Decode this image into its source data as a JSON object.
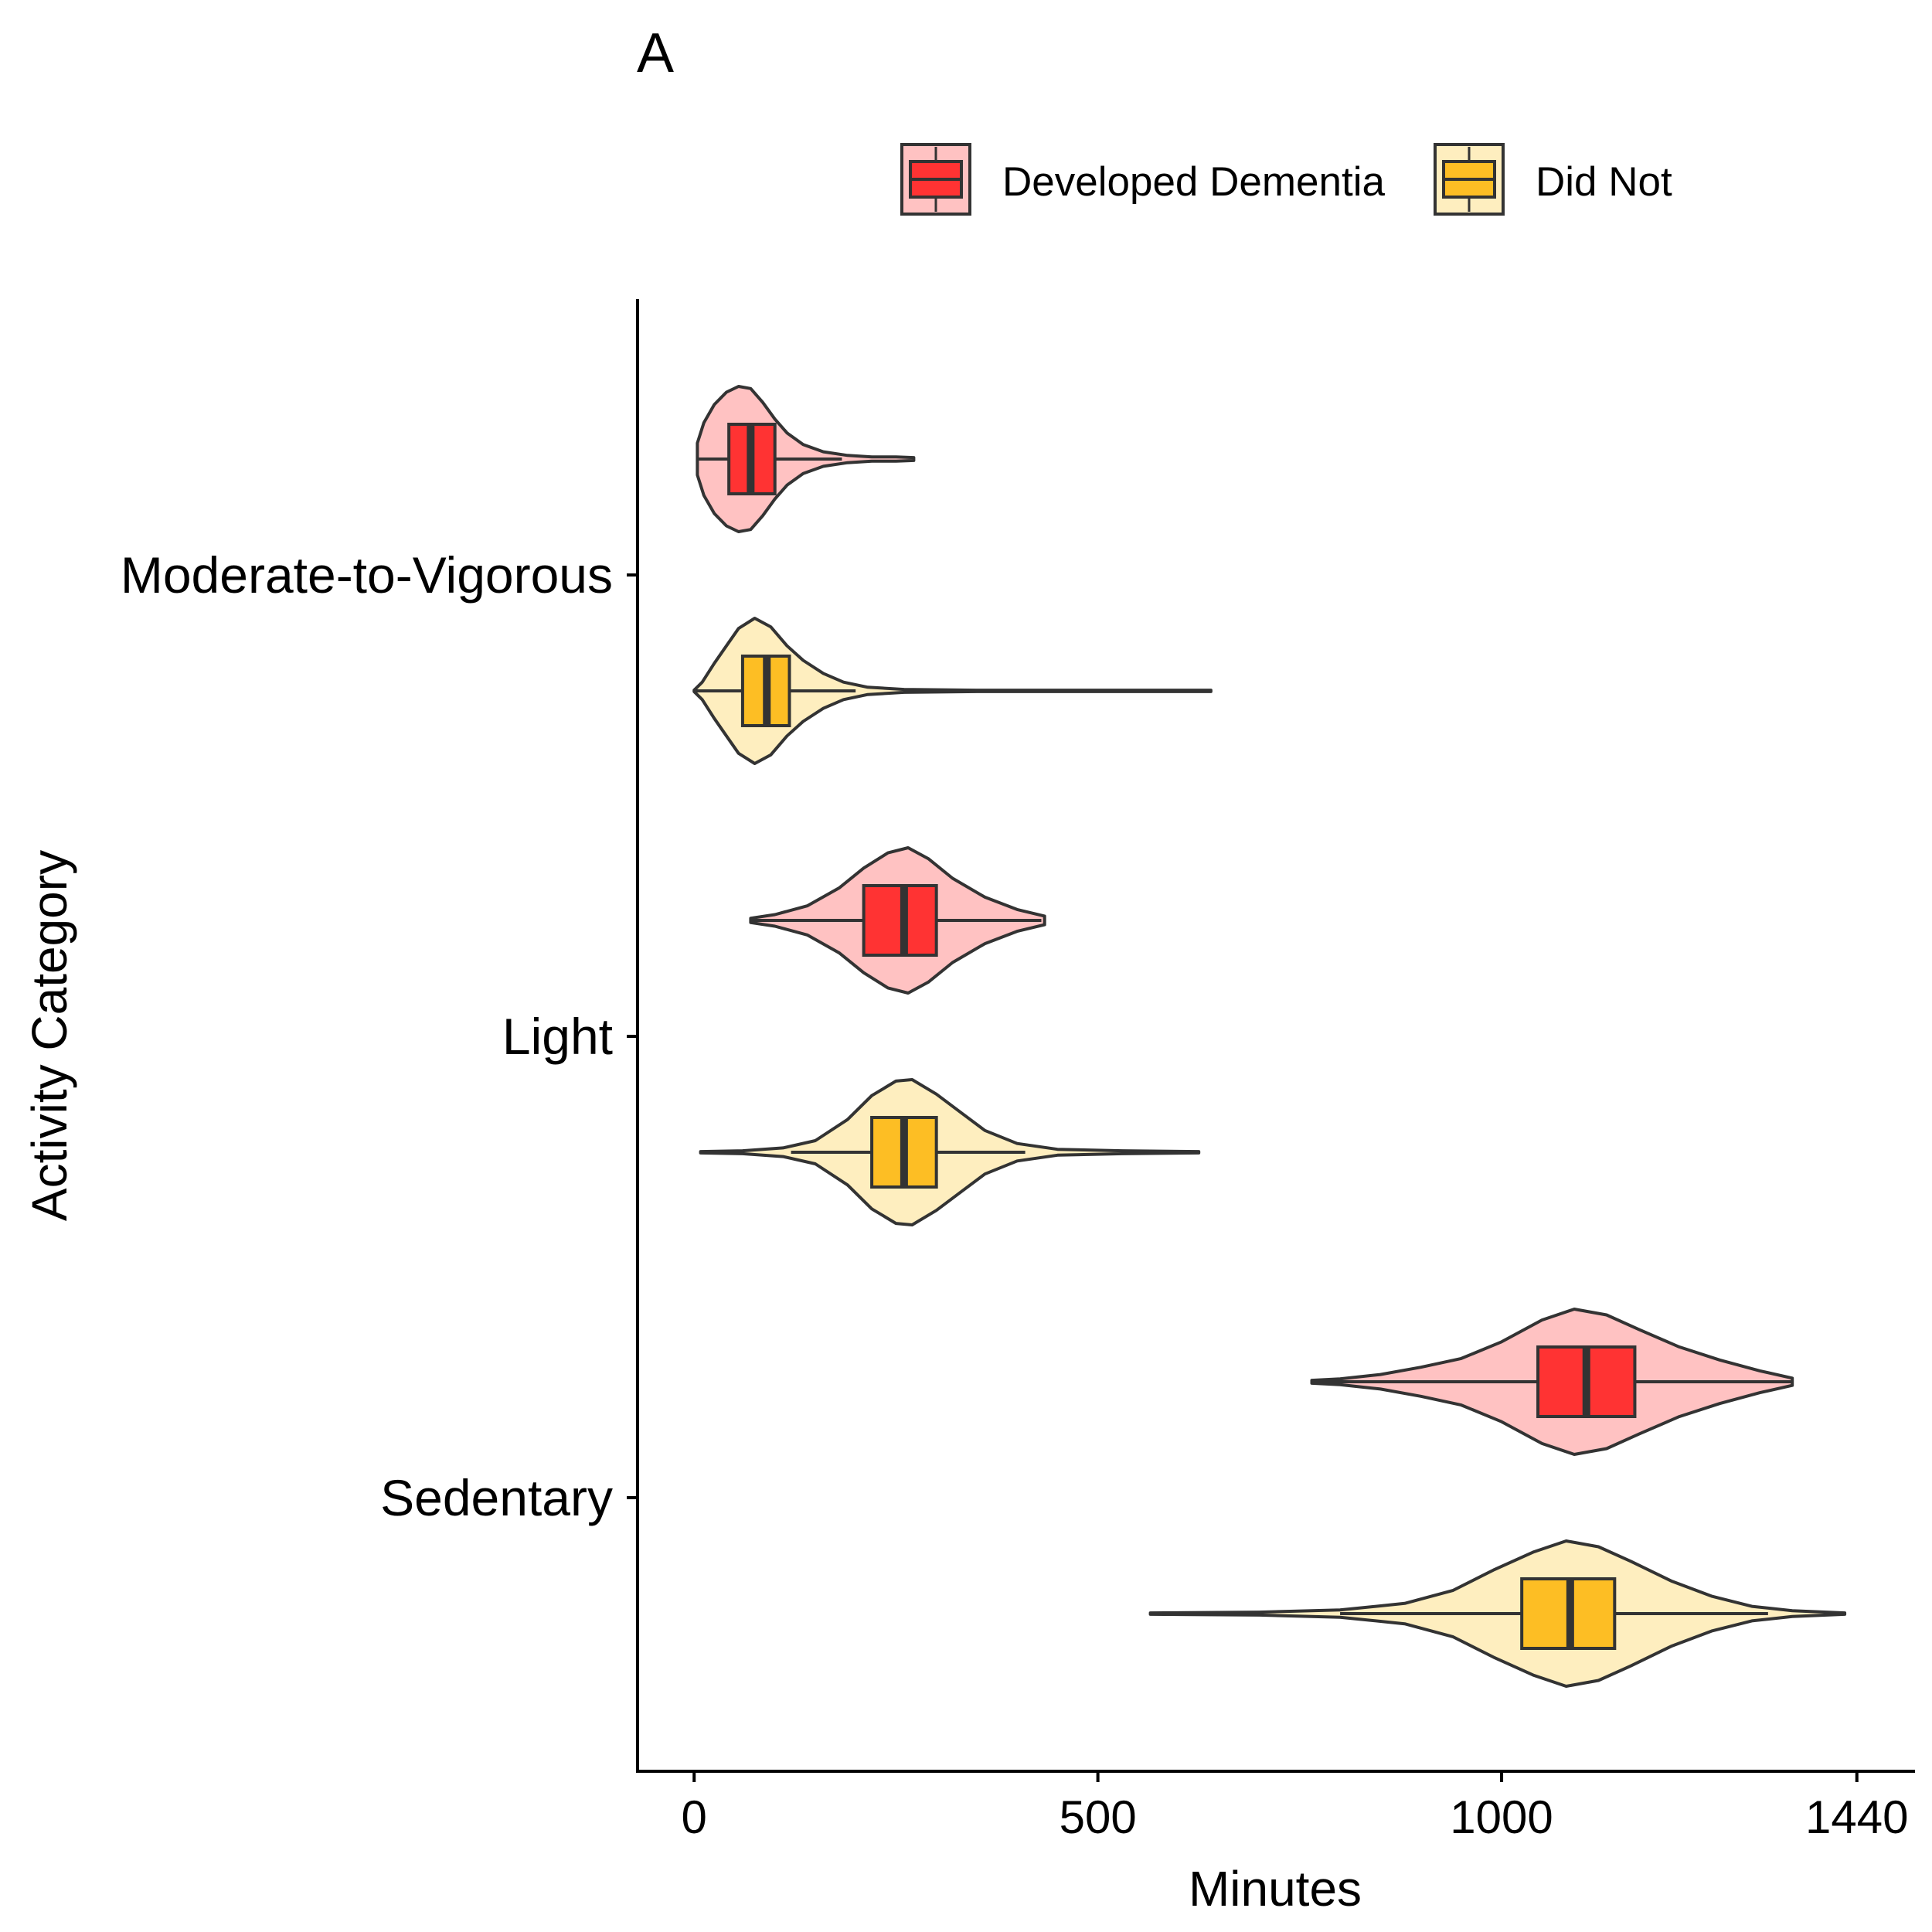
{
  "panel_label": "A",
  "colors": {
    "dementia_box": "#FF3333",
    "dementia_violin": "#FFC2C2",
    "didnot_box": "#FDBE24",
    "didnot_violin": "#FEEEBF",
    "outline": "#333333",
    "axis": "#000000"
  },
  "chart_data": {
    "type": "violin",
    "orientation": "horizontal",
    "xlabel": "Minutes",
    "ylabel": "Activity Category",
    "xlim": [
      -72,
      1512
    ],
    "x_ticks": [
      0,
      500,
      1000,
      1440
    ],
    "x_tick_labels": [
      "0",
      "500",
      "1000",
      "1440"
    ],
    "categories": [
      "Moderate-to-Vigorous",
      "Light",
      "Sedentary"
    ],
    "legend": {
      "position": "top",
      "entries": [
        "Developed Dementia",
        "Did Not"
      ]
    },
    "grid": false,
    "series": [
      {
        "name": "Developed Dementia",
        "box_color": "#FF3333",
        "violin_color": "#FFC2C2",
        "stats": [
          {
            "category": "Moderate-to-Vigorous",
            "min": 4,
            "q1": 43,
            "median": 70,
            "q3": 100,
            "max": 183,
            "violin_min": 4,
            "violin_max": 272,
            "density": [
              [
                4,
                0.22
              ],
              [
                12,
                0.5
              ],
              [
                25,
                0.75
              ],
              [
                40,
                0.92
              ],
              [
                55,
                1.0
              ],
              [
                70,
                0.97
              ],
              [
                85,
                0.78
              ],
              [
                100,
                0.55
              ],
              [
                115,
                0.36
              ],
              [
                135,
                0.2
              ],
              [
                160,
                0.1
              ],
              [
                190,
                0.05
              ],
              [
                220,
                0.03
              ],
              [
                250,
                0.03
              ],
              [
                272,
                0.02
              ]
            ]
          },
          {
            "category": "Light",
            "min": 70,
            "q1": 210,
            "median": 260,
            "q3": 300,
            "max": 430,
            "violin_min": 70,
            "violin_max": 434,
            "density": [
              [
                70,
                0.03
              ],
              [
                100,
                0.08
              ],
              [
                140,
                0.2
              ],
              [
                180,
                0.45
              ],
              [
                210,
                0.72
              ],
              [
                240,
                0.93
              ],
              [
                265,
                1.0
              ],
              [
                290,
                0.85
              ],
              [
                320,
                0.58
              ],
              [
                360,
                0.32
              ],
              [
                400,
                0.15
              ],
              [
                434,
                0.06
              ]
            ]
          },
          {
            "category": "Sedentary",
            "min": 765,
            "q1": 1045,
            "median": 1105,
            "q3": 1165,
            "max": 1360,
            "violin_min": 765,
            "violin_max": 1360,
            "density": [
              [
                765,
                0.02
              ],
              [
                800,
                0.04
              ],
              [
                850,
                0.1
              ],
              [
                900,
                0.2
              ],
              [
                950,
                0.32
              ],
              [
                1000,
                0.55
              ],
              [
                1050,
                0.85
              ],
              [
                1090,
                1.0
              ],
              [
                1130,
                0.92
              ],
              [
                1170,
                0.72
              ],
              [
                1220,
                0.48
              ],
              [
                1270,
                0.3
              ],
              [
                1320,
                0.15
              ],
              [
                1360,
                0.05
              ]
            ]
          }
        ]
      },
      {
        "name": "Did Not",
        "box_color": "#FDBE24",
        "violin_color": "#FEEEBF",
        "stats": [
          {
            "category": "Moderate-to-Vigorous",
            "min": 2,
            "q1": 60,
            "median": 90,
            "q3": 118,
            "max": 200,
            "violin_min": 0,
            "violin_max": 640,
            "density": [
              [
                0,
                0.01
              ],
              [
                10,
                0.12
              ],
              [
                25,
                0.38
              ],
              [
                40,
                0.62
              ],
              [
                55,
                0.86
              ],
              [
                75,
                1.0
              ],
              [
                95,
                0.88
              ],
              [
                115,
                0.62
              ],
              [
                135,
                0.42
              ],
              [
                160,
                0.24
              ],
              [
                185,
                0.12
              ],
              [
                215,
                0.05
              ],
              [
                260,
                0.02
              ],
              [
                350,
                0.01
              ],
              [
                500,
                0.01
              ],
              [
                640,
                0.01
              ]
            ]
          },
          {
            "category": "Light",
            "min": 120,
            "q1": 220,
            "median": 260,
            "q3": 300,
            "max": 410,
            "violin_min": 8,
            "violin_max": 625,
            "density": [
              [
                8,
                0.01
              ],
              [
                60,
                0.02
              ],
              [
                110,
                0.06
              ],
              [
                150,
                0.16
              ],
              [
                190,
                0.45
              ],
              [
                220,
                0.78
              ],
              [
                250,
                0.98
              ],
              [
                270,
                1.0
              ],
              [
                300,
                0.8
              ],
              [
                330,
                0.55
              ],
              [
                360,
                0.3
              ],
              [
                400,
                0.12
              ],
              [
                450,
                0.04
              ],
              [
                530,
                0.02
              ],
              [
                625,
                0.01
              ]
            ]
          },
          {
            "category": "Sedentary",
            "min": 800,
            "q1": 1025,
            "median": 1085,
            "q3": 1140,
            "max": 1330,
            "violin_min": 565,
            "violin_max": 1425,
            "density": [
              [
                565,
                0.01
              ],
              [
                700,
                0.02
              ],
              [
                800,
                0.05
              ],
              [
                880,
                0.14
              ],
              [
                940,
                0.32
              ],
              [
                990,
                0.6
              ],
              [
                1040,
                0.85
              ],
              [
                1080,
                1.0
              ],
              [
                1120,
                0.92
              ],
              [
                1160,
                0.72
              ],
              [
                1210,
                0.45
              ],
              [
                1260,
                0.24
              ],
              [
                1310,
                0.1
              ],
              [
                1360,
                0.04
              ],
              [
                1425,
                0.01
              ]
            ]
          }
        ]
      }
    ]
  }
}
